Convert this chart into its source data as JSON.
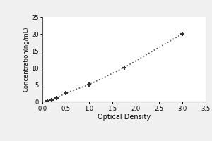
{
  "x_data": [
    0.1,
    0.2,
    0.3,
    0.5,
    1.0,
    1.75,
    3.0
  ],
  "y_data": [
    0.2,
    0.5,
    1.0,
    2.5,
    5.0,
    10.0,
    20.0
  ],
  "xlabel": "Optical Density",
  "ylabel": "Concentration(ng/mL)",
  "xlim": [
    0,
    3.5
  ],
  "ylim": [
    0,
    25
  ],
  "xticks": [
    0,
    0.5,
    1.0,
    1.5,
    2.0,
    2.5,
    3.0,
    3.5
  ],
  "yticks": [
    0,
    5,
    10,
    15,
    20,
    25
  ],
  "line_color": "#555555",
  "marker_color": "#333333",
  "marker": "+",
  "linestyle": "dotted",
  "linewidth": 1.2,
  "markersize": 5,
  "markeredgewidth": 1.5,
  "xlabel_fontsize": 7,
  "ylabel_fontsize": 6,
  "tick_fontsize": 6,
  "background_color": "#f0f0f0",
  "plot_bg_color": "#ffffff",
  "border_color": "#aaaaaa"
}
